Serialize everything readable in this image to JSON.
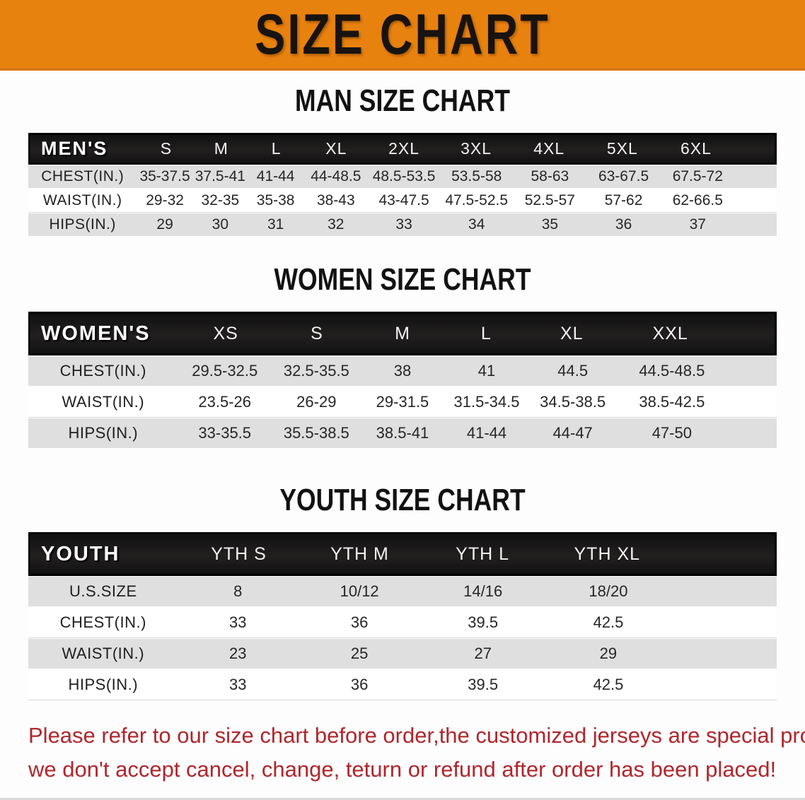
{
  "banner": {
    "title": "SIZE CHART",
    "bg_color": "#e8820f",
    "text_color": "#181310"
  },
  "colors": {
    "header_band_bg": "#191919",
    "stripe_row_bg": "#dfdfdf",
    "disclaimer_text": "#b0262c"
  },
  "sections": [
    {
      "id": "men",
      "title": "MAN SIZE CHART",
      "columns": [
        "MEN'S",
        "S",
        "M",
        "L",
        "XL",
        "2XL",
        "3XL",
        "4XL",
        "5XL",
        "6XL"
      ],
      "rows": [
        [
          "CHEST(IN.)",
          "35-37.5",
          "37.5-41",
          "41-44",
          "44-48.5",
          "48.5-53.5",
          "53.5-58",
          "58-63",
          "63-67.5",
          "67.5-72"
        ],
        [
          "WAIST(IN.)",
          "29-32",
          "32-35",
          "35-38",
          "38-43",
          "43-47.5",
          "47.5-52.5",
          "52.5-57",
          "57-62",
          "62-66.5"
        ],
        [
          "HIPS(IN.)",
          "29",
          "30",
          "31",
          "32",
          "33",
          "34",
          "35",
          "36",
          "37"
        ]
      ]
    },
    {
      "id": "women",
      "title": "WOMEN SIZE CHART",
      "columns": [
        "WOMEN'S",
        "XS",
        "S",
        "M",
        "L",
        "XL",
        "XXL"
      ],
      "rows": [
        [
          "CHEST(IN.)",
          "29.5-32.5",
          "32.5-35.5",
          "38",
          "41",
          "44.5",
          "44.5-48.5"
        ],
        [
          "WAIST(IN.)",
          "23.5-26",
          "26-29",
          "29-31.5",
          "31.5-34.5",
          "34.5-38.5",
          "38.5-42.5"
        ],
        [
          "HIPS(IN.)",
          "33-35.5",
          "35.5-38.5",
          "38.5-41",
          "41-44",
          "44-47",
          "47-50"
        ]
      ]
    },
    {
      "id": "youth",
      "title": "YOUTH SIZE CHART",
      "columns": [
        "YOUTH",
        "YTH S",
        "YTH M",
        "YTH L",
        "YTH XL"
      ],
      "rows": [
        [
          "U.S.SIZE",
          "8",
          "10/12",
          "14/16",
          "18/20"
        ],
        [
          "CHEST(IN.)",
          "33",
          "36",
          "39.5",
          "42.5"
        ],
        [
          "WAIST(IN.)",
          "23",
          "25",
          "27",
          "29"
        ],
        [
          "HIPS(IN.)",
          "33",
          "36",
          "39.5",
          "42.5"
        ]
      ]
    }
  ],
  "disclaimer": {
    "line1": "Please refer to our size chart before order,the customized jerseys are special products,",
    "line2": "we don't accept cancel, change, teturn or refund after order has been placed!"
  },
  "chart_data": [
    {
      "type": "table",
      "title": "MAN SIZE CHART",
      "columns": [
        "MEN'S",
        "S",
        "M",
        "L",
        "XL",
        "2XL",
        "3XL",
        "4XL",
        "5XL",
        "6XL"
      ],
      "rows": [
        [
          "CHEST(IN.)",
          "35-37.5",
          "37.5-41",
          "41-44",
          "44-48.5",
          "48.5-53.5",
          "53.5-58",
          "58-63",
          "63-67.5",
          "67.5-72"
        ],
        [
          "WAIST(IN.)",
          "29-32",
          "32-35",
          "35-38",
          "38-43",
          "43-47.5",
          "47.5-52.5",
          "52.5-57",
          "57-62",
          "62-66.5"
        ],
        [
          "HIPS(IN.)",
          "29",
          "30",
          "31",
          "32",
          "33",
          "34",
          "35",
          "36",
          "37"
        ]
      ]
    },
    {
      "type": "table",
      "title": "WOMEN SIZE CHART",
      "columns": [
        "WOMEN'S",
        "XS",
        "S",
        "M",
        "L",
        "XL",
        "XXL"
      ],
      "rows": [
        [
          "CHEST(IN.)",
          "29.5-32.5",
          "32.5-35.5",
          "38",
          "41",
          "44.5",
          "44.5-48.5"
        ],
        [
          "WAIST(IN.)",
          "23.5-26",
          "26-29",
          "29-31.5",
          "31.5-34.5",
          "34.5-38.5",
          "38.5-42.5"
        ],
        [
          "HIPS(IN.)",
          "33-35.5",
          "35.5-38.5",
          "38.5-41",
          "41-44",
          "44-47",
          "47-50"
        ]
      ]
    },
    {
      "type": "table",
      "title": "YOUTH SIZE CHART",
      "columns": [
        "YOUTH",
        "YTH S",
        "YTH M",
        "YTH L",
        "YTH XL"
      ],
      "rows": [
        [
          "U.S.SIZE",
          "8",
          "10/12",
          "14/16",
          "18/20"
        ],
        [
          "CHEST(IN.)",
          "33",
          "36",
          "39.5",
          "42.5"
        ],
        [
          "WAIST(IN.)",
          "23",
          "25",
          "27",
          "29"
        ],
        [
          "HIPS(IN.)",
          "33",
          "36",
          "39.5",
          "42.5"
        ]
      ]
    }
  ]
}
